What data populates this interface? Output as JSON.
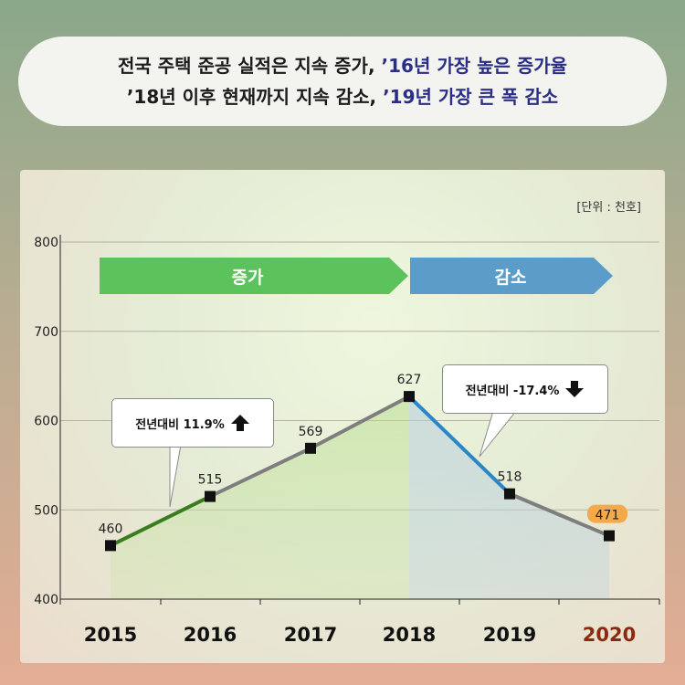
{
  "headline": {
    "line1_prefix": "전국 주택 준공 실적은 지속 증가,",
    "line1_highlight": "’16년 가장 높은 증가율",
    "line2_prefix": "’18년 이후 현재까지 지속 감소,",
    "line2_highlight": "’19년 가장 큰 폭 감소"
  },
  "unit_label": "[단위 : 천호]",
  "phases": [
    {
      "label": "증가",
      "color": "#5cc35c"
    },
    {
      "label": "감소",
      "color": "#5b9dc8"
    }
  ],
  "callouts": {
    "increase": {
      "text": "전년대비 11.9%",
      "icon": "arrow-up-icon"
    },
    "decrease": {
      "text": "전년대비 -17.4%",
      "icon": "arrow-down-icon"
    }
  },
  "colors": {
    "increase_line": "#3a7d1e",
    "decrease_line": "#2b86c8",
    "neutral_line": "#7e7e7e",
    "highlight_year": "#8b2a0f",
    "highlight_badge": "#f5a94a"
  },
  "chart_data": {
    "type": "line",
    "categories": [
      "2015",
      "2016",
      "2017",
      "2018",
      "2019",
      "2020"
    ],
    "values": [
      460,
      515,
      569,
      627,
      518,
      471
    ],
    "ylim": [
      400,
      800
    ],
    "yticks": [
      400,
      500,
      600,
      700,
      800
    ],
    "grid": true,
    "highlight_category": "2020"
  }
}
